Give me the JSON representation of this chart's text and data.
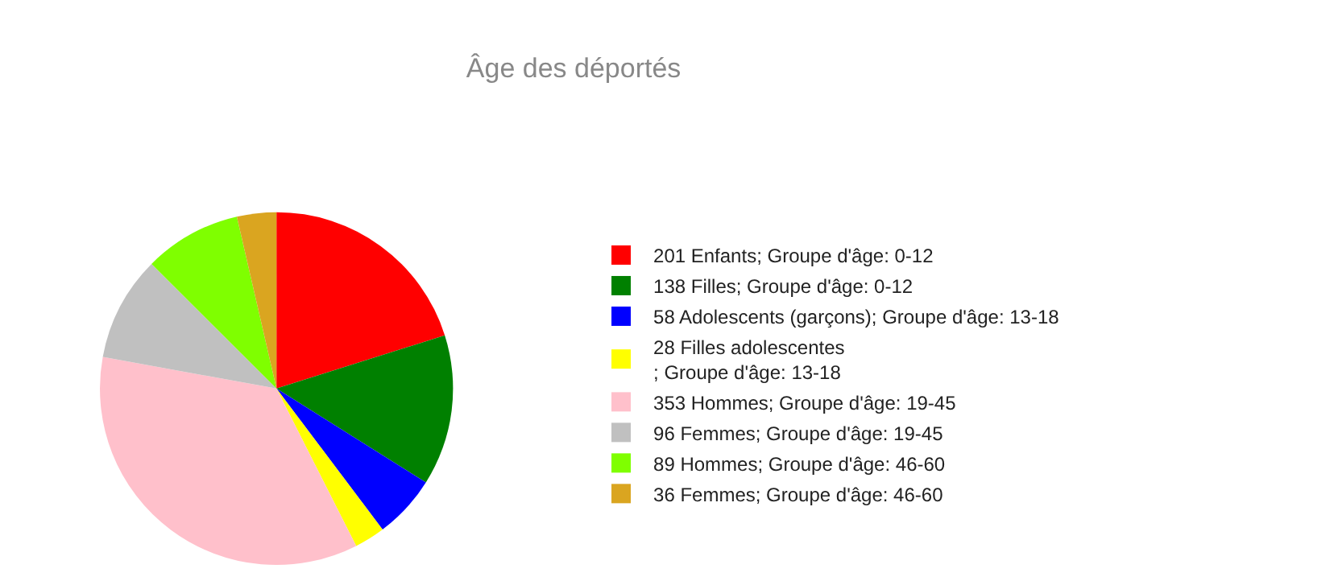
{
  "chart_data": {
    "type": "pie",
    "title": "Âge des déportés",
    "categories": [
      "201 Enfants; Groupe d'âge: 0-12",
      "138 Filles; Groupe d'âge: 0-12",
      "58 Adolescents (garçons); Groupe d'âge: 13-18",
      "28 Filles adolescentes\n; Groupe d'âge: 13-18",
      "353 Hommes; Groupe d'âge: 19-45",
      "96 Femmes; Groupe d'âge: 19-45",
      "89 Hommes; Groupe d'âge: 46-60",
      "36 Femmes; Groupe d'âge: 46-60"
    ],
    "values": [
      201,
      138,
      58,
      28,
      353,
      96,
      89,
      36
    ],
    "colors": [
      "#ff0000",
      "#008000",
      "#0000ff",
      "#ffff00",
      "#ffc0cb",
      "#c0c0c0",
      "#7fff00",
      "#daa520"
    ],
    "legend": "right"
  }
}
